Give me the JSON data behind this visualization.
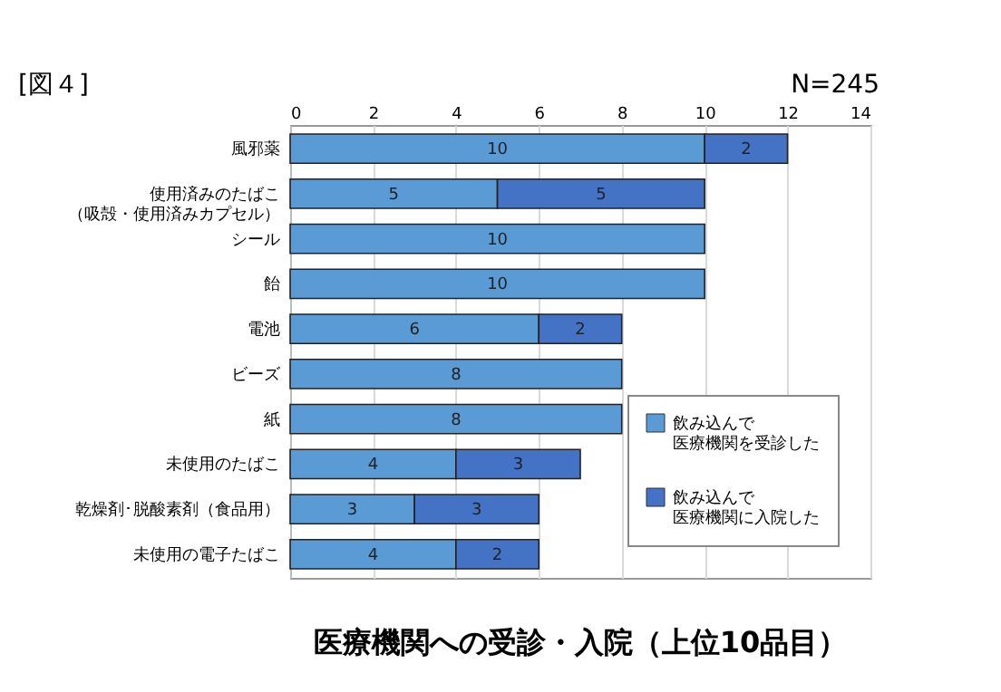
{
  "chart_data": {
    "type": "bar",
    "orientation": "horizontal",
    "stacked": true,
    "title": "医療機関への受診・入院（上位10品目）",
    "annotations": [
      "[図４]",
      "N=245"
    ],
    "categories": [
      "風邪薬",
      "使用済みのたばこ（吸殻・使用済みカプセル）",
      "シール",
      "飴",
      "電池",
      "ビーズ",
      "紙",
      "未使用のたばこ",
      "乾燥剤･脱酸素剤（食品用）",
      "未使用の電子たばこ"
    ],
    "series": [
      {
        "name": "飲み込んで医療機関を受診した",
        "color": "#5b9bd5",
        "values": [
          10,
          5,
          10,
          10,
          6,
          8,
          8,
          4,
          3,
          4
        ]
      },
      {
        "name": "飲み込んで医療機関に入院した",
        "color": "#4472c4",
        "values": [
          2,
          5,
          null,
          null,
          2,
          null,
          null,
          3,
          3,
          2
        ]
      }
    ],
    "xlim": [
      0,
      14
    ],
    "xticks": [
      0,
      2,
      4,
      6,
      8,
      10,
      12,
      14
    ],
    "grid": "x",
    "legend": "bottom right",
    "data_labels": true
  }
}
